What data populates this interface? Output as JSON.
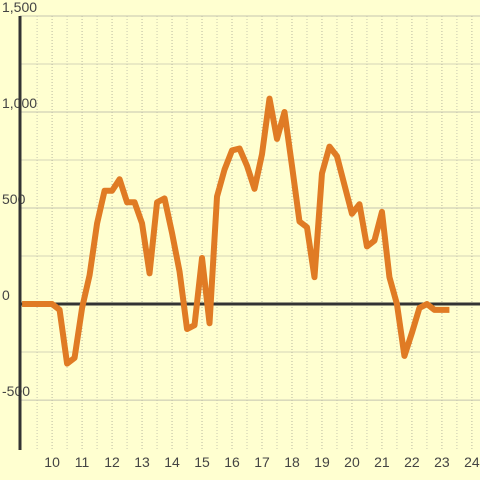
{
  "chart_data": {
    "type": "line",
    "x": [
      9.0,
      9.25,
      9.5,
      9.75,
      10.0,
      10.25,
      10.5,
      10.75,
      11.0,
      11.25,
      11.5,
      11.75,
      12.0,
      12.25,
      12.5,
      12.75,
      13.0,
      13.25,
      13.5,
      13.75,
      14.0,
      14.25,
      14.5,
      14.75,
      15.0,
      15.25,
      15.5,
      15.75,
      16.0,
      16.25,
      16.5,
      16.75,
      17.0,
      17.25,
      17.5,
      17.75,
      18.0,
      18.25,
      18.5,
      18.75,
      19.0,
      19.25,
      19.5,
      19.75,
      20.0,
      20.25,
      20.5,
      20.75,
      21.0,
      21.25,
      21.5,
      21.75,
      22.0,
      22.25,
      22.5,
      22.75,
      23.0,
      23.25
    ],
    "series": [
      {
        "color": "#e07b24",
        "values": [
          0,
          0,
          0,
          0,
          0,
          -30,
          -310,
          -280,
          -20,
          150,
          420,
          590,
          590,
          650,
          530,
          530,
          420,
          160,
          530,
          550,
          370,
          170,
          -130,
          -110,
          240,
          -100,
          560,
          700,
          800,
          810,
          720,
          600,
          780,
          1070,
          860,
          1000,
          720,
          430,
          400,
          140,
          680,
          820,
          770,
          620,
          470,
          520,
          300,
          330,
          480,
          140,
          0,
          -270,
          -150,
          -20,
          0,
          -30,
          -30,
          -30
        ]
      }
    ],
    "xlim": [
      8.93,
      24.27
    ],
    "xticks": [
      10,
      11,
      12,
      13,
      14,
      15,
      16,
      17,
      18,
      19,
      20,
      21,
      22,
      23,
      24
    ],
    "x_minor_ticks": [
      9.5,
      10.5,
      11.5,
      12.5,
      13.5,
      14.5,
      15.5,
      16.5,
      17.5,
      18.5,
      19.5,
      20.5,
      21.5,
      22.5,
      23.5
    ],
    "ylim": [
      -760,
      1500
    ],
    "yticks": [
      -500,
      0,
      500,
      {
        "value": 1000,
        "label": "1,000"
      },
      {
        "value": 1500,
        "label": "1,500"
      }
    ],
    "y_minor_ticks": [
      -250,
      250,
      750,
      1250
    ],
    "grid": true
  }
}
